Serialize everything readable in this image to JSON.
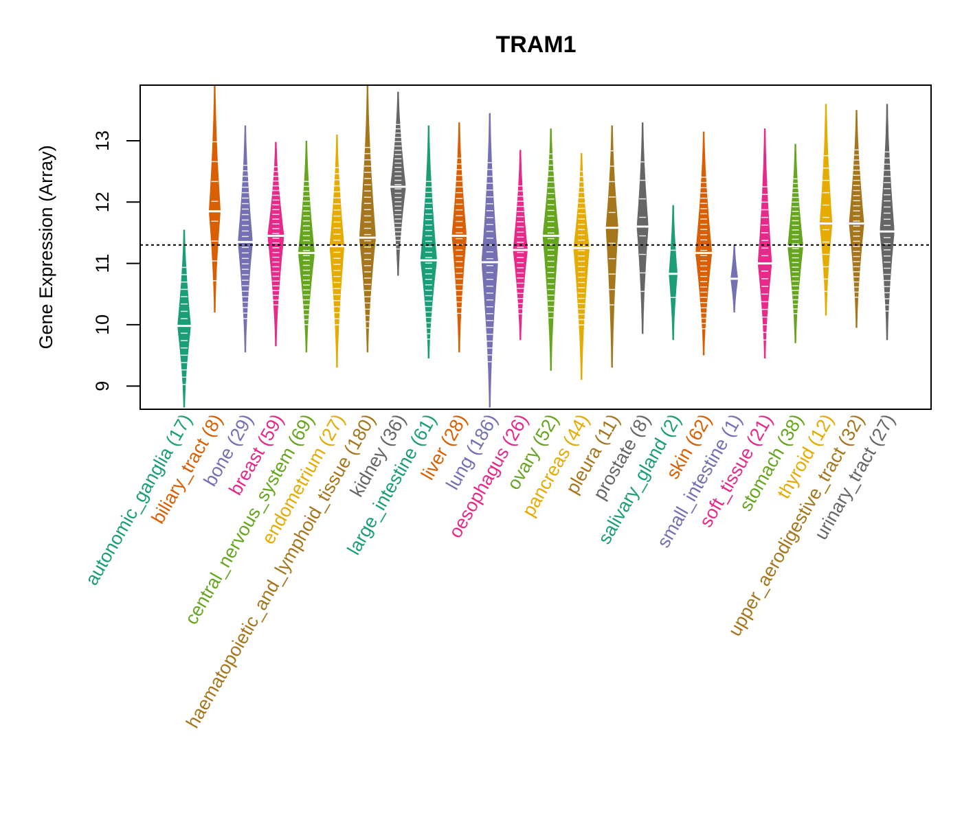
{
  "chart_data": {
    "type": "violin",
    "title": "TRAM1",
    "xlabel": "",
    "ylabel": "Gene Expression (Array)",
    "ylim": [
      8.6,
      13.9
    ],
    "yticks": [
      9,
      10,
      11,
      12,
      13
    ],
    "reference_line": 11.3,
    "grid": false,
    "categories": [
      {
        "name": "autonomic_ganglia",
        "n": 17,
        "color": "#1B9E77",
        "median": 9.98,
        "min": 8.65,
        "max": 11.55
      },
      {
        "name": "biliary_tract",
        "n": 8,
        "color": "#D95F02",
        "median": 11.85,
        "min": 10.2,
        "max": 13.9
      },
      {
        "name": "bone",
        "n": 29,
        "color": "#7570B3",
        "median": 11.35,
        "min": 9.55,
        "max": 13.25
      },
      {
        "name": "breast",
        "n": 59,
        "color": "#E7298A",
        "median": 11.45,
        "min": 9.65,
        "max": 12.98
      },
      {
        "name": "central_nervous_system",
        "n": 69,
        "color": "#66A61E",
        "median": 11.17,
        "min": 9.55,
        "max": 13.0
      },
      {
        "name": "endometrium",
        "n": 27,
        "color": "#E6AB02",
        "median": 11.28,
        "min": 9.3,
        "max": 13.1
      },
      {
        "name": "haematopoietic_and_lymphoid_tissue",
        "n": 180,
        "color": "#A6761D",
        "median": 11.42,
        "min": 9.55,
        "max": 13.9
      },
      {
        "name": "kidney",
        "n": 36,
        "color": "#666666",
        "median": 12.25,
        "min": 10.8,
        "max": 13.8
      },
      {
        "name": "large_intestine",
        "n": 61,
        "color": "#1B9E77",
        "median": 11.05,
        "min": 9.45,
        "max": 13.25
      },
      {
        "name": "liver",
        "n": 28,
        "color": "#D95F02",
        "median": 11.45,
        "min": 9.55,
        "max": 13.3
      },
      {
        "name": "lung",
        "n": 186,
        "color": "#7570B3",
        "median": 11.02,
        "min": 8.65,
        "max": 13.45
      },
      {
        "name": "oesophagus",
        "n": 26,
        "color": "#E7298A",
        "median": 11.22,
        "min": 9.75,
        "max": 12.85
      },
      {
        "name": "ovary",
        "n": 52,
        "color": "#66A61E",
        "median": 11.45,
        "min": 9.25,
        "max": 13.2
      },
      {
        "name": "pancreas",
        "n": 44,
        "color": "#E6AB02",
        "median": 11.25,
        "min": 9.1,
        "max": 12.8
      },
      {
        "name": "pleura",
        "n": 11,
        "color": "#A6761D",
        "median": 11.58,
        "min": 9.3,
        "max": 13.25
      },
      {
        "name": "prostate",
        "n": 8,
        "color": "#666666",
        "median": 11.6,
        "min": 9.85,
        "max": 13.3
      },
      {
        "name": "salivary_gland",
        "n": 2,
        "color": "#1B9E77",
        "median": 10.83,
        "min": 9.75,
        "max": 11.95
      },
      {
        "name": "skin",
        "n": 62,
        "color": "#D95F02",
        "median": 11.17,
        "min": 9.5,
        "max": 13.15
      },
      {
        "name": "small_intestine",
        "n": 1,
        "color": "#7570B3",
        "median": 10.75,
        "min": 10.2,
        "max": 11.3
      },
      {
        "name": "soft_tissue",
        "n": 21,
        "color": "#E7298A",
        "median": 11.0,
        "min": 9.45,
        "max": 13.2
      },
      {
        "name": "stomach",
        "n": 38,
        "color": "#66A61E",
        "median": 11.28,
        "min": 9.7,
        "max": 12.95
      },
      {
        "name": "thyroid",
        "n": 12,
        "color": "#E6AB02",
        "median": 11.65,
        "min": 10.15,
        "max": 13.6
      },
      {
        "name": "upper_aerodigestive_tract",
        "n": 32,
        "color": "#A6761D",
        "median": 11.65,
        "min": 9.95,
        "max": 13.5
      },
      {
        "name": "urinary_tract",
        "n": 27,
        "color": "#666666",
        "median": 11.52,
        "min": 9.75,
        "max": 13.6
      }
    ]
  }
}
